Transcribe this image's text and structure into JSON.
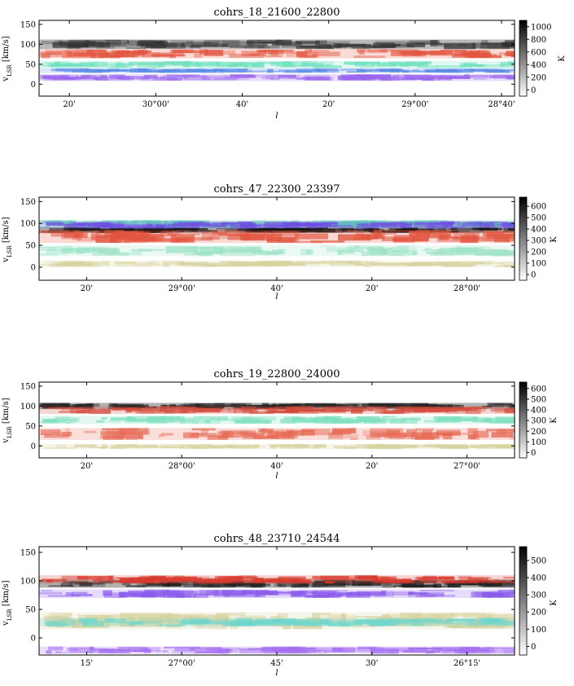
{
  "chart_data": [
    {
      "type": "heatmap",
      "title": "cohrs_18_21600_22800",
      "xlabel": "l",
      "ylabel": "v_LSR [km/s]",
      "ylabel_main": "v",
      "ylabel_sub": "LSR",
      "ylabel_unit": " [km/s]",
      "yticks": [
        "0",
        "50",
        "100",
        "150"
      ],
      "yticks_values": [
        0,
        50,
        100,
        150
      ],
      "ylim": [
        -30,
        160
      ],
      "xticks": [
        "20'",
        "30°00'",
        "40'",
        "20'",
        "29°00'",
        "28°40'"
      ],
      "colorbar_label": "K",
      "colorbar_ticks": [
        "0",
        "200",
        "400",
        "600",
        "800",
        "1000"
      ],
      "colorbar_values": [
        0,
        200,
        400,
        600,
        800,
        1000
      ],
      "colorbar_range": [
        -100,
        1100
      ],
      "emission_bands": [
        {
          "v_min": 88,
          "v_max": 112,
          "color": "#333333",
          "label": "grayscale"
        },
        {
          "v_min": 65,
          "v_max": 88,
          "color": "#e2553f",
          "label": "red"
        },
        {
          "v_min": 40,
          "v_max": 58,
          "color": "#6fe0bd",
          "label": "teal"
        },
        {
          "v_min": 8,
          "v_max": 25,
          "color": "#9a66ee",
          "label": "purple"
        },
        {
          "v_min": 28,
          "v_max": 40,
          "color": "#5a8ce6",
          "label": "blue"
        }
      ]
    },
    {
      "type": "heatmap",
      "title": "cohrs_47_22300_23397",
      "xlabel": "l",
      "ylabel": "v_LSR [km/s]",
      "ylabel_main": "v",
      "ylabel_sub": "LSR",
      "ylabel_unit": " [km/s]",
      "yticks": [
        "0",
        "50",
        "100",
        "150"
      ],
      "yticks_values": [
        0,
        50,
        100,
        150
      ],
      "ylim": [
        -30,
        160
      ],
      "xticks": [
        "20'",
        "29°00'",
        "40'",
        "20'",
        "28°00'"
      ],
      "colorbar_label": "K",
      "colorbar_ticks": [
        "0",
        "100",
        "200",
        "300",
        "400",
        "500",
        "600"
      ],
      "colorbar_values": [
        0,
        100,
        200,
        300,
        400,
        500,
        600
      ],
      "colorbar_range": [
        -50,
        680
      ],
      "emission_bands": [
        {
          "v_min": 78,
          "v_max": 92,
          "color": "#111111",
          "label": "grayscale"
        },
        {
          "v_min": 90,
          "v_max": 108,
          "color": "#5fd6b6",
          "label": "teal"
        },
        {
          "v_min": 55,
          "v_max": 85,
          "color": "#e2553f",
          "label": "red"
        },
        {
          "v_min": 88,
          "v_max": 105,
          "color": "#6f4fe0",
          "label": "purple"
        },
        {
          "v_min": 25,
          "v_max": 50,
          "color": "#9fe3c8",
          "label": "teal"
        },
        {
          "v_min": 0,
          "v_max": 15,
          "color": "#d7d3a0",
          "label": "khaki"
        }
      ]
    },
    {
      "type": "heatmap",
      "title": "cohrs_19_22800_24000",
      "xlabel": "l",
      "ylabel": "v_LSR [km/s]",
      "ylabel_main": "v",
      "ylabel_sub": "LSR",
      "ylabel_unit": " [km/s]",
      "yticks": [
        "0",
        "50",
        "100",
        "150"
      ],
      "yticks_values": [
        0,
        50,
        100,
        150
      ],
      "ylim": [
        -30,
        160
      ],
      "xticks": [
        "20'",
        "28°00'",
        "40'",
        "20'",
        "27°00'"
      ],
      "colorbar_label": "K",
      "colorbar_ticks": [
        "0",
        "100",
        "200",
        "300",
        "400",
        "500",
        "600"
      ],
      "colorbar_values": [
        0,
        100,
        200,
        300,
        400,
        500,
        600
      ],
      "colorbar_range": [
        -50,
        660
      ],
      "emission_bands": [
        {
          "v_min": 92,
          "v_max": 108,
          "color": "#222222",
          "label": "grayscale"
        },
        {
          "v_min": 80,
          "v_max": 100,
          "color": "#d24a3a",
          "label": "red"
        },
        {
          "v_min": 55,
          "v_max": 75,
          "color": "#7fe0c0",
          "label": "teal"
        },
        {
          "v_min": 15,
          "v_max": 45,
          "color": "#e66a55",
          "label": "red"
        },
        {
          "v_min": -8,
          "v_max": 5,
          "color": "#d7d3a0",
          "label": "khaki"
        }
      ]
    },
    {
      "type": "heatmap",
      "title": "cohrs_48_23710_24544",
      "xlabel": "l",
      "ylabel": "v_LSR [km/s]",
      "ylabel_main": "v",
      "ylabel_sub": "LSR",
      "ylabel_unit": " [km/s]",
      "yticks": [
        "0",
        "50",
        "100",
        "150"
      ],
      "yticks_values": [
        0,
        50,
        100,
        150
      ],
      "ylim": [
        -30,
        160
      ],
      "xticks": [
        "15'",
        "27°00'",
        "45'",
        "30'",
        "26°15'"
      ],
      "colorbar_label": "K",
      "colorbar_ticks": [
        "0",
        "100",
        "200",
        "300",
        "400",
        "500"
      ],
      "colorbar_values": [
        0,
        100,
        200,
        300,
        400,
        500
      ],
      "colorbar_range": [
        -50,
        580
      ],
      "emission_bands": [
        {
          "v_min": 88,
          "v_max": 102,
          "color": "#222222",
          "label": "grayscale"
        },
        {
          "v_min": 95,
          "v_max": 110,
          "color": "#d83a2e",
          "label": "red"
        },
        {
          "v_min": 70,
          "v_max": 85,
          "color": "#8a5cea",
          "label": "purple"
        },
        {
          "v_min": 15,
          "v_max": 45,
          "color": "#d7d3a0",
          "label": "khaki"
        },
        {
          "v_min": 20,
          "v_max": 35,
          "color": "#6fd6cc",
          "label": "teal"
        },
        {
          "v_min": -28,
          "v_max": -15,
          "color": "#a46ff0",
          "label": "purple"
        }
      ]
    }
  ]
}
